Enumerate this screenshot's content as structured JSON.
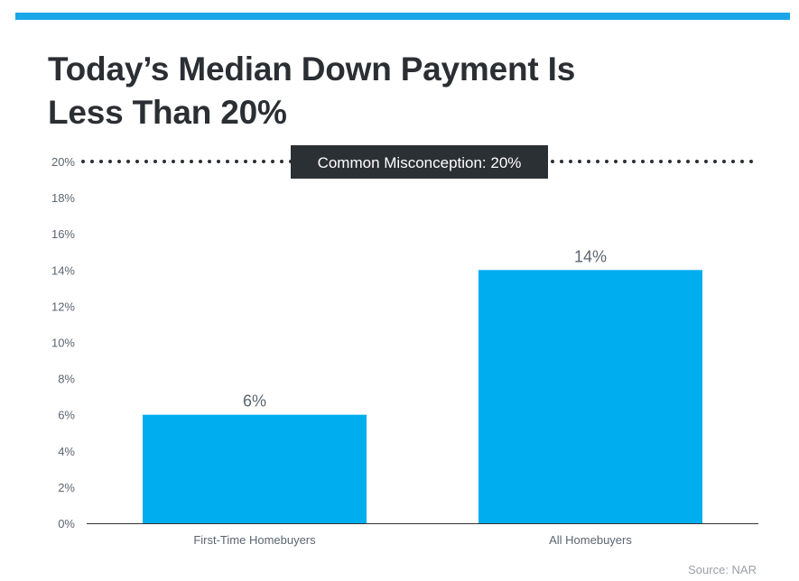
{
  "header": {
    "title_line1": "Today’s Median Down Payment Is",
    "title_line2": "Less Than 20%"
  },
  "chart_data": {
    "type": "bar",
    "title": "Today’s Median Down Payment Is Less Than 20%",
    "categories": [
      "First-Time Homebuyers",
      "All Homebuyers"
    ],
    "values": [
      6,
      14
    ],
    "value_labels": [
      "6%",
      "14%"
    ],
    "ylim": [
      0,
      20
    ],
    "yticks": [
      0,
      2,
      4,
      6,
      8,
      10,
      12,
      14,
      16,
      18,
      20
    ],
    "ytick_labels": [
      "0%",
      "2%",
      "4%",
      "6%",
      "8%",
      "10%",
      "12%",
      "14%",
      "16%",
      "18%",
      "20%"
    ],
    "grid": false,
    "reference_line": {
      "value": 20,
      "label": "Common Misconception: 20%",
      "style": "dotted"
    },
    "colors": {
      "bar": "#00aeef",
      "reference_label_bg": "#2b3035",
      "axis_text": "#5b6570"
    }
  },
  "footer": {
    "source": "Source: NAR"
  }
}
